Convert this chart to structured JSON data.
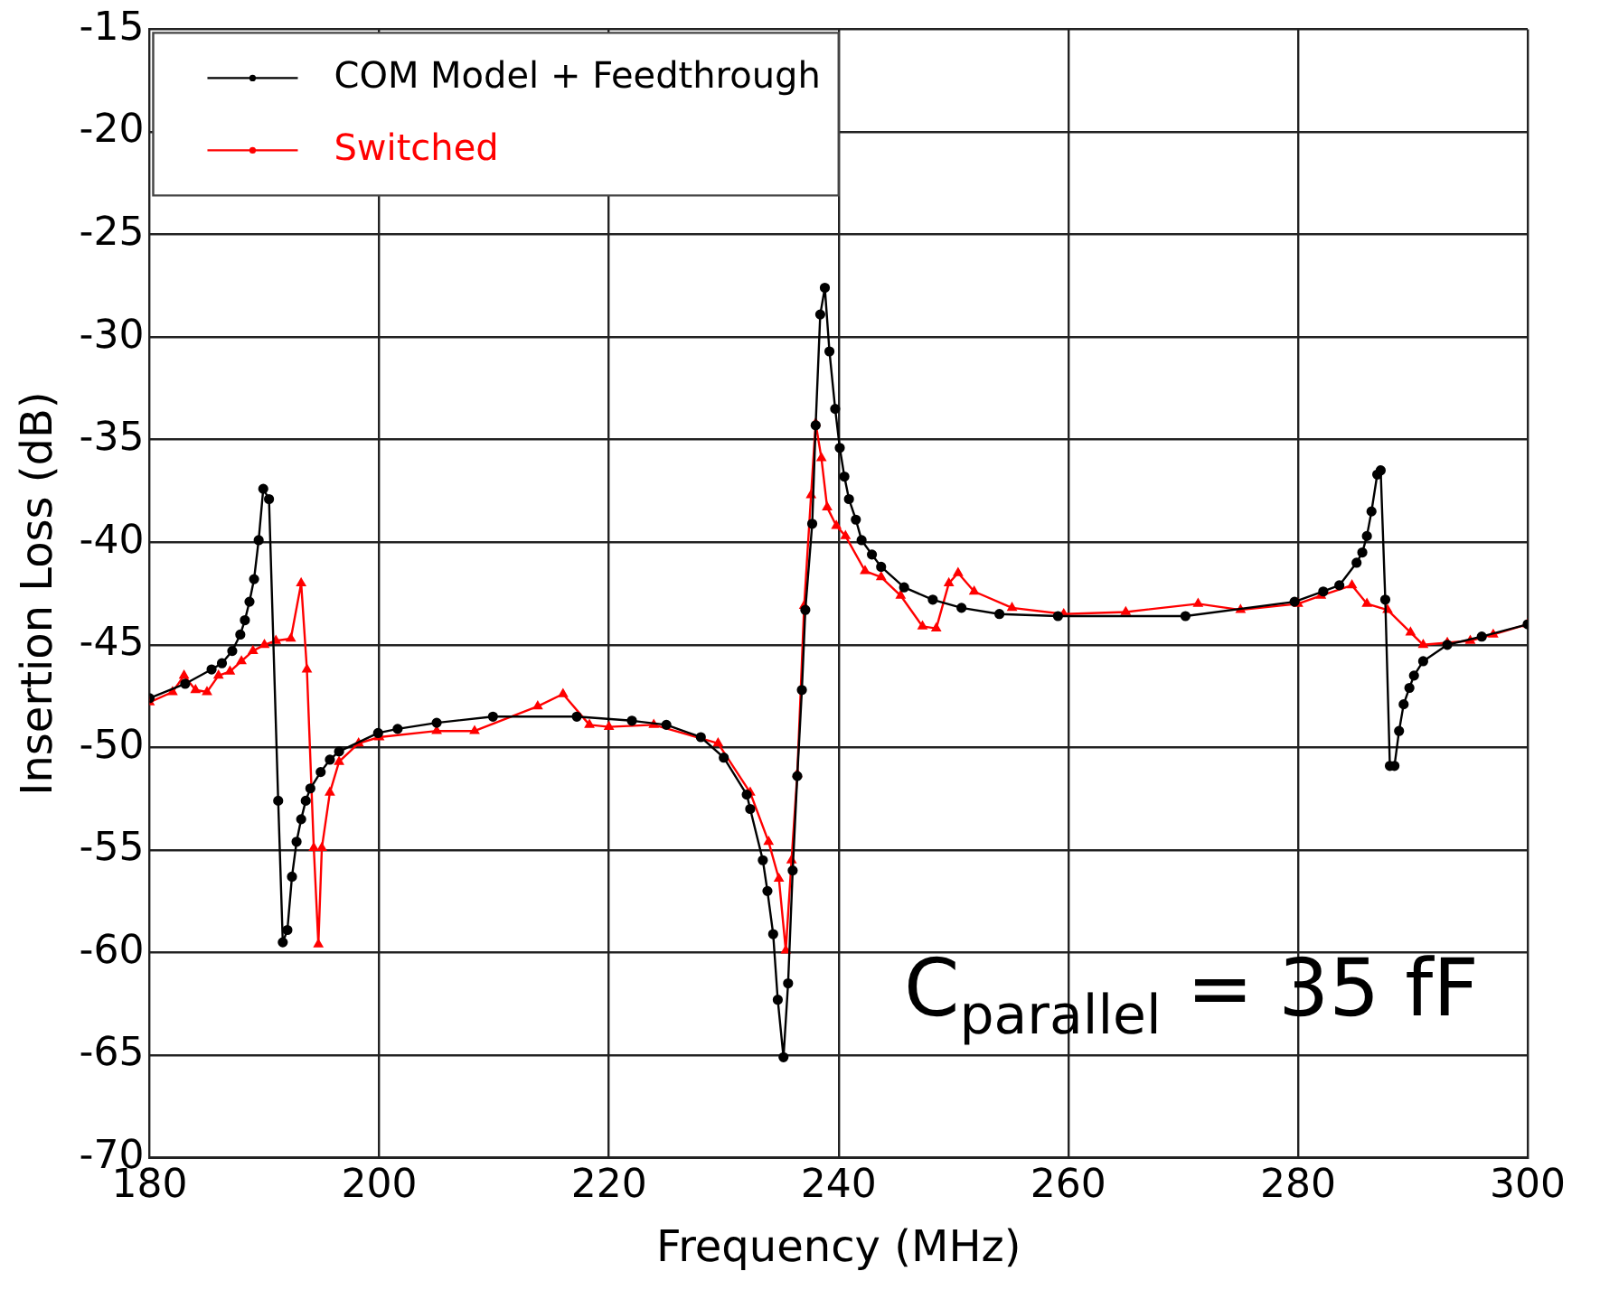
{
  "chart_data": {
    "type": "line",
    "xlabel": "Frequency (MHz)",
    "ylabel": "Insertion Loss (dB)",
    "xlim": [
      180,
      300
    ],
    "xticks": [
      180,
      200,
      220,
      240,
      260,
      280,
      300
    ],
    "ylim": [
      -70,
      -15
    ],
    "yticks": [
      -70,
      -65,
      -60,
      -55,
      -50,
      -45,
      -40,
      -35,
      -30,
      -25,
      -20,
      -15
    ],
    "grid": true,
    "legend": "top left",
    "line_style": "solid",
    "annotations": [
      "C$_{parallel}$ = 35 fF"
    ],
    "series": [
      {
        "name": "COM Model + Feedthrough",
        "color": "#000000",
        "marker": "circle",
        "x": [
          180,
          183.1,
          185.4,
          186.3,
          187.2,
          187.9,
          188.3,
          188.7,
          189.1,
          189.5,
          189.9,
          190.4,
          191.2,
          191.6,
          192.0,
          192.4,
          192.8,
          193.2,
          193.6,
          194.0,
          194.9,
          195.7,
          196.5,
          199.9,
          201.6,
          205,
          209.9,
          217.2,
          222,
          225,
          228,
          230,
          232.0,
          232.3,
          233.4,
          233.8,
          234.3,
          234.7,
          235.2,
          235.6,
          236.0,
          236.4,
          236.8,
          237.1,
          237.7,
          238.0,
          238.4,
          238.8,
          239.2,
          239.7,
          240.1,
          240.5,
          240.9,
          241.5,
          242.0,
          242.9,
          243.7,
          245.7,
          248.2,
          250.7,
          254.0,
          259.1,
          270.2,
          279.7,
          282.2,
          283.6,
          285.1,
          285.6,
          286.0,
          286.4,
          286.9,
          287.2,
          287.6,
          288.0,
          288.4,
          288.8,
          289.2,
          289.7,
          290.1,
          290.9,
          293.0,
          296,
          300
        ],
        "values": [
          -47.6,
          -46.9,
          -46.2,
          -45.9,
          -45.3,
          -44.5,
          -43.8,
          -42.9,
          -41.8,
          -39.9,
          -37.4,
          -37.9,
          -52.6,
          -59.5,
          -58.9,
          -56.3,
          -54.6,
          -53.5,
          -52.6,
          -52.0,
          -51.2,
          -50.6,
          -50.2,
          -49.3,
          -49.1,
          -48.8,
          -48.5,
          -48.5,
          -48.7,
          -48.9,
          -49.5,
          -50.5,
          -52.3,
          -53.0,
          -55.5,
          -57.0,
          -59.1,
          -62.3,
          -65.1,
          -61.5,
          -56.0,
          -51.4,
          -47.2,
          -43.3,
          -39.1,
          -34.3,
          -28.9,
          -27.6,
          -30.7,
          -33.5,
          -35.4,
          -36.8,
          -37.9,
          -38.9,
          -39.9,
          -40.6,
          -41.2,
          -42.2,
          -42.8,
          -43.2,
          -43.5,
          -43.6,
          -43.6,
          -42.9,
          -42.4,
          -42.1,
          -41.0,
          -40.5,
          -39.7,
          -38.5,
          -36.7,
          -36.5,
          -42.8,
          -50.9,
          -50.9,
          -49.2,
          -47.9,
          -47.1,
          -46.5,
          -45.8,
          -45.0,
          -44.6,
          -44.0
        ]
      },
      {
        "name": "Switched",
        "color": "#ff0000",
        "marker": "triangle",
        "x": [
          180,
          182,
          183,
          184,
          185,
          186,
          187,
          188,
          189,
          190,
          191,
          192.3,
          193.2,
          193.7,
          194.3,
          194.7,
          195.0,
          195.7,
          196.5,
          198.2,
          200,
          205,
          208.3,
          213.8,
          216,
          218.3,
          220,
          223.9,
          229.5,
          232.3,
          233.9,
          234.8,
          235.4,
          235.9,
          236.4,
          237.0,
          237.6,
          238.0,
          238.5,
          239.0,
          239.8,
          240.6,
          242.3,
          243.7,
          245.4,
          247.3,
          248.5,
          249.6,
          250.4,
          251.8,
          255.1,
          259.6,
          265,
          271.3,
          275,
          280,
          282,
          284.7,
          286,
          287.8,
          289.8,
          290.9,
          293,
          295,
          297,
          300
        ],
        "values": [
          -47.8,
          -47.3,
          -46.5,
          -47.2,
          -47.3,
          -46.5,
          -46.3,
          -45.8,
          -45.3,
          -45.0,
          -44.8,
          -44.7,
          -42.0,
          -46.2,
          -54.9,
          -59.6,
          -54.9,
          -52.2,
          -50.7,
          -49.8,
          -49.5,
          -49.2,
          -49.2,
          -48.0,
          -47.4,
          -48.9,
          -49.0,
          -48.9,
          -49.8,
          -52.2,
          -54.6,
          -56.4,
          -59.9,
          -55.5,
          -51.3,
          -43.1,
          -37.7,
          -34.2,
          -35.9,
          -38.3,
          -39.2,
          -39.7,
          -41.4,
          -41.7,
          -42.6,
          -44.1,
          -44.2,
          -42.0,
          -41.5,
          -42.4,
          -43.2,
          -43.5,
          -43.4,
          -43.0,
          -43.3,
          -43.0,
          -42.6,
          -42.1,
          -43.0,
          -43.3,
          -44.4,
          -45.0,
          -44.9,
          -44.8,
          -44.5,
          -44.0
        ]
      }
    ]
  }
}
